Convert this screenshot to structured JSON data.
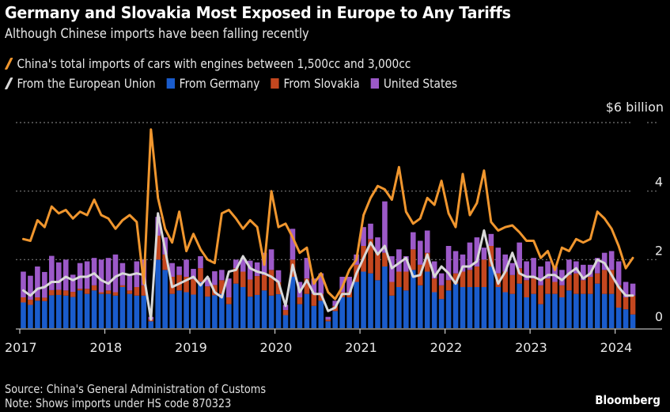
{
  "header": {
    "title": "Germany and Slovakia Most Exposed in Europe to Any Tariffs",
    "subtitle": "Although Chinese imports have been falling recently"
  },
  "legend": {
    "total": {
      "label": "China's total imports of cars with engines between 1,500cc and 3,000cc",
      "color": "#f0962e"
    },
    "eu": {
      "label": "From the European Union",
      "color": "#d9d9d9"
    },
    "germany": {
      "label": "From Germany",
      "color": "#1a5ccc"
    },
    "slovakia": {
      "label": "From Slovakia",
      "color": "#c4471f"
    },
    "us": {
      "label": "United States",
      "color": "#9c59c8"
    }
  },
  "footer": {
    "source": "Source: China's General Administration of Customs",
    "note": "Note: Shows imports under HS code 870323",
    "brand": "Bloomberg"
  },
  "chart_data": {
    "type": "bar",
    "stacked": true,
    "title": "Germany and Slovakia Most Exposed in Europe to Any Tariffs",
    "subtitle": "Although Chinese imports have been falling recently",
    "xlabel": "",
    "ylabel": "$ billion",
    "unit_label": "$6 billion",
    "ylim": [
      0,
      6
    ],
    "yticks": [
      0,
      2,
      4,
      6
    ],
    "ytick_labels": [
      "0",
      "2",
      "4",
      "$6 billion"
    ],
    "x_start": "2017-01",
    "frequency": "monthly",
    "xticks": [
      "2017",
      "2018",
      "2019",
      "2020",
      "2021",
      "2022",
      "2023",
      "2024"
    ],
    "grid": "horizontal-dotted",
    "legend_position": "top-left",
    "series": [
      {
        "name": "From Germany",
        "type": "bar",
        "color": "#1a5ccc",
        "values": [
          0.75,
          0.68,
          0.8,
          0.79,
          0.96,
          0.97,
          0.95,
          0.91,
          1.1,
          1.0,
          1.1,
          1.0,
          1.0,
          0.95,
          1.2,
          1.0,
          0.95,
          0.95,
          0.2,
          2.0,
          1.7,
          1.0,
          1.1,
          1.05,
          0.98,
          1.35,
          0.92,
          0.96,
          1.0,
          0.7,
          1.3,
          1.2,
          0.92,
          0.97,
          1.1,
          0.95,
          0.99,
          0.38,
          1.5,
          0.7,
          1.0,
          0.65,
          0.8,
          0.2,
          0.5,
          0.9,
          0.9,
          1.35,
          1.65,
          1.6,
          1.4,
          1.8,
          0.95,
          1.2,
          1.1,
          1.7,
          1.25,
          1.65,
          1.05,
          0.85,
          1.1,
          1.3,
          1.2,
          1.2,
          1.2,
          1.2,
          1.8,
          1.2,
          1.05,
          1.0,
          1.3,
          0.9,
          1.0,
          0.7,
          1.0,
          1.0,
          0.9,
          1.1,
          1.0,
          1.0,
          1.0,
          1.3,
          1.0,
          1.0,
          0.6,
          0.55,
          0.4
        ]
      },
      {
        "name": "From Slovakia",
        "type": "bar",
        "color": "#c4471f",
        "values": [
          0.15,
          0.15,
          0.1,
          0.1,
          0.15,
          0.15,
          0.15,
          0.15,
          0.05,
          0.15,
          0.15,
          0.05,
          0.1,
          0.1,
          0.05,
          0.1,
          0.25,
          0.3,
          0.05,
          0.7,
          0.45,
          0.5,
          0.45,
          0.45,
          0.45,
          0.4,
          0.3,
          0.3,
          0.4,
          0.2,
          0.45,
          0.45,
          0.5,
          0.55,
          0.45,
          0.75,
          0.35,
          0.15,
          0.5,
          0.2,
          0.45,
          0.35,
          0.2,
          0.05,
          0.15,
          0.15,
          0.15,
          0.5,
          0.75,
          1.0,
          0.8,
          0.4,
          0.4,
          0.45,
          0.55,
          0.6,
          0.6,
          0.55,
          0.4,
          0.4,
          0.3,
          0.3,
          0.45,
          0.5,
          0.6,
          0.8,
          0.6,
          0.4,
          0.6,
          0.55,
          0.45,
          0.5,
          0.45,
          0.55,
          0.45,
          0.35,
          0.35,
          0.45,
          0.6,
          0.4,
          0.5,
          0.3,
          0.7,
          0.7,
          0.65,
          0.35,
          0.55
        ]
      },
      {
        "name": "United States",
        "type": "bar",
        "color": "#9c59c8",
        "values": [
          0.75,
          0.7,
          0.9,
          0.75,
          1.0,
          0.8,
          0.9,
          0.5,
          0.75,
          0.8,
          0.8,
          0.95,
          0.95,
          1.1,
          0.65,
          0.45,
          0.75,
          0.75,
          0.08,
          0.55,
          0.5,
          0.4,
          0.25,
          0.5,
          0.3,
          0.35,
          0.25,
          0.4,
          0.3,
          0.55,
          0.25,
          0.4,
          0.55,
          0.4,
          0.65,
          0.6,
          0.35,
          0.15,
          0.9,
          0.45,
          0.6,
          0.45,
          0.6,
          0.08,
          0.15,
          0.45,
          0.45,
          0.3,
          0.55,
          0.45,
          0.45,
          1.5,
          0.75,
          0.65,
          0.45,
          0.5,
          0.7,
          0.65,
          0.5,
          0.35,
          1.0,
          0.65,
          0.5,
          0.8,
          0.85,
          0.35,
          0.35,
          0.75,
          0.5,
          0.35,
          0.75,
          0.55,
          0.6,
          0.55,
          0.5,
          0.45,
          0.45,
          0.45,
          0.35,
          0.45,
          0.35,
          0.45,
          0.5,
          0.55,
          0.7,
          0.45,
          0.35
        ]
      },
      {
        "name": "From the European Union",
        "type": "line",
        "color": "#d9d9d9",
        "values": [
          1.1,
          0.95,
          1.15,
          1.2,
          1.35,
          1.35,
          1.5,
          1.4,
          1.5,
          1.5,
          1.6,
          1.4,
          1.3,
          1.5,
          1.6,
          1.55,
          1.6,
          1.55,
          0.25,
          3.35,
          2.3,
          1.2,
          1.3,
          1.4,
          1.5,
          1.25,
          1.5,
          1.05,
          0.9,
          1.65,
          1.7,
          2.1,
          1.75,
          1.65,
          1.6,
          1.5,
          1.35,
          0.65,
          1.85,
          1.05,
          1.4,
          1.0,
          1.0,
          0.5,
          0.6,
          1.0,
          1.0,
          1.6,
          2.05,
          2.5,
          2.15,
          2.4,
          1.75,
          1.9,
          2.05,
          1.5,
          1.55,
          2.15,
          1.5,
          1.8,
          1.6,
          1.3,
          1.8,
          1.8,
          1.95,
          2.85,
          1.95,
          1.3,
          1.65,
          2.2,
          1.6,
          1.5,
          1.5,
          1.4,
          1.55,
          1.55,
          1.4,
          1.6,
          1.75,
          1.45,
          1.6,
          2.0,
          1.9,
          1.55,
          1.2,
          0.95,
          0.95
        ]
      },
      {
        "name": "China's total imports of cars with engines between 1,500cc and 3,000cc",
        "type": "line",
        "color": "#f0962e",
        "values": [
          2.6,
          2.55,
          3.15,
          2.95,
          3.55,
          3.35,
          3.45,
          3.2,
          3.4,
          3.3,
          3.75,
          3.3,
          3.2,
          2.9,
          3.15,
          3.3,
          3.1,
          1.3,
          5.8,
          3.8,
          2.9,
          2.5,
          3.4,
          2.25,
          2.75,
          2.3,
          2.0,
          1.9,
          3.35,
          3.45,
          3.2,
          2.9,
          3.15,
          2.95,
          1.85,
          4.0,
          2.95,
          3.05,
          2.65,
          2.2,
          2.35,
          1.3,
          1.6,
          1.05,
          0.85,
          1.2,
          1.7,
          2.0,
          3.3,
          3.8,
          4.15,
          4.05,
          3.75,
          4.7,
          3.4,
          3.05,
          3.2,
          3.8,
          3.6,
          4.3,
          3.35,
          2.95,
          4.5,
          3.3,
          3.65,
          4.6,
          3.1,
          2.85,
          2.95,
          3.0,
          2.8,
          2.55,
          2.55,
          2.05,
          2.25,
          1.7,
          2.35,
          2.25,
          2.6,
          2.5,
          2.6,
          3.4,
          3.2,
          2.9,
          2.4,
          1.75,
          2.05
        ]
      }
    ]
  }
}
